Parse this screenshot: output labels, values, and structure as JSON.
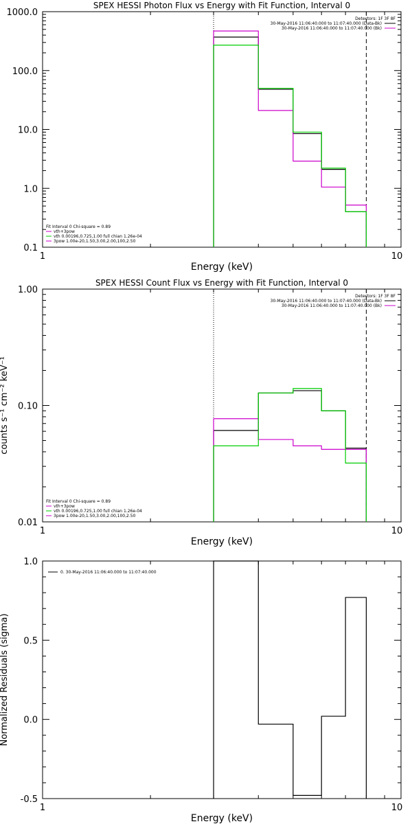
{
  "chart_data": [
    {
      "type": "line",
      "title": "SPEX HESSI Photon Flux vs Energy with Fit Function, Interval 0",
      "xlabel": "Energy (keV)",
      "ylabel": "",
      "xscale": "log",
      "yscale": "log",
      "xlim": [
        1,
        10
      ],
      "ylim": [
        0.1,
        1000
      ],
      "x_tick_labels": [
        "1",
        "10"
      ],
      "y_ticks": [
        0.1,
        1,
        10,
        100,
        1000
      ],
      "y_tick_labels": [
        "0.1",
        "1.0",
        "10.0",
        "100.0",
        "1000.0"
      ],
      "vlines": [
        {
          "x": 3.0,
          "style": "dotted"
        },
        {
          "x": 8.0,
          "style": "dashed"
        }
      ],
      "legend_header": "Detectors: 1F 3F 8F",
      "legend_entries": [
        {
          "label": "30-May-2016 11:06:40.000 to 11:07:40.000 (Data-Bk)",
          "color": "#000000"
        },
        {
          "label": "30-May-2016 11:06:40.000 to 11:07:40.000 (Bk)",
          "color": "#cc00cc"
        }
      ],
      "fit_info": "Fit Interval 0   Chi-square = 0.89",
      "fit_entries": [
        {
          "label": "vth+3pow",
          "color": "#cc00cc"
        },
        {
          "label": "vth 0.00196,0.725,1.00  full chian 1.26e-04",
          "color": "#00cc00"
        },
        {
          "label": "3pow 1.00e-20,1.50,3.00,2.00,100,2.50",
          "color": "#cc00cc"
        }
      ],
      "edges": [
        3.0,
        4.0,
        5.0,
        6.0,
        7.0,
        8.0
      ],
      "series": [
        {
          "color": "#000000",
          "values": [
            370,
            48,
            8.5,
            2.1,
            0.4
          ]
        },
        {
          "color": "#cc00cc",
          "values": [
            470,
            21,
            2.9,
            1.05,
            0.52
          ]
        },
        {
          "color": "#00cc00",
          "values": [
            270,
            50,
            9.0,
            2.2,
            0.4
          ]
        }
      ]
    },
    {
      "type": "line",
      "title": "SPEX HESSI Count Flux vs Energy with Fit Function, Interval 0",
      "xlabel": "Energy (keV)",
      "ylabel": "counts s⁻¹ cm⁻² keV⁻¹",
      "xscale": "log",
      "yscale": "log",
      "xlim": [
        1,
        10
      ],
      "ylim": [
        0.01,
        1
      ],
      "x_tick_labels": [
        "1",
        "10"
      ],
      "y_ticks": [
        0.01,
        0.1,
        1
      ],
      "y_tick_labels": [
        "0.01",
        "0.10",
        "1.00"
      ],
      "vlines": [
        {
          "x": 3.0,
          "style": "dotted"
        },
        {
          "x": 8.0,
          "style": "dashed"
        }
      ],
      "legend_header": "Detectors: 1F 3F 8F",
      "legend_entries": [
        {
          "label": "30-May-2016 11:06:40.000 to 11:07:40.000 (Data-Bk)",
          "color": "#000000"
        },
        {
          "label": "30-May-2016 11:06:40.000 to 11:07:40.000 (Bk)",
          "color": "#cc00cc"
        }
      ],
      "fit_info": "Fit Interval 0   Chi-square = 0.89",
      "fit_entries": [
        {
          "label": "vth+3pow",
          "color": "#cc00cc"
        },
        {
          "label": "vth 0.00196,0.725,1.00  full chian 1.26e-04",
          "color": "#00cc00"
        },
        {
          "label": "3pow 1.00e-20,1.50,3.00,2.00,100,2.50",
          "color": "#cc00cc"
        }
      ],
      "edges": [
        3.0,
        4.0,
        5.0,
        6.0,
        7.0,
        8.0
      ],
      "series": [
        {
          "color": "#000000",
          "values": [
            0.061,
            0.128,
            0.134,
            0.09,
            0.043
          ]
        },
        {
          "color": "#cc00cc",
          "values": [
            0.077,
            0.051,
            0.045,
            0.042,
            0.042
          ]
        },
        {
          "color": "#00cc00",
          "values": [
            0.045,
            0.128,
            0.14,
            0.09,
            0.032
          ]
        }
      ]
    },
    {
      "type": "line",
      "title": "",
      "xlabel": "Energy (keV)",
      "ylabel": "Normalized Residuals (sigma)",
      "xscale": "log",
      "yscale": "linear",
      "xlim": [
        1,
        10
      ],
      "ylim": [
        -0.5,
        1.0
      ],
      "x_tick_labels": [
        "1",
        "10"
      ],
      "y_ticks": [
        -0.5,
        0.0,
        0.5,
        1.0
      ],
      "y_tick_labels": [
        "-0.5",
        "0.0",
        "0.5",
        "1.0"
      ],
      "legend_header": "",
      "legend_entries": [
        {
          "label": "0. 30-May-2016 11:06:40.000 to 11:07:40.000",
          "color": "#000000"
        }
      ],
      "fit_info": "",
      "fit_entries": [],
      "edges": [
        3.0,
        4.0,
        5.0,
        6.0,
        7.0,
        8.0
      ],
      "series": [
        {
          "color": "#000000",
          "values": [
            1.0,
            -0.03,
            -0.48,
            0.02,
            0.77
          ]
        }
      ]
    }
  ]
}
